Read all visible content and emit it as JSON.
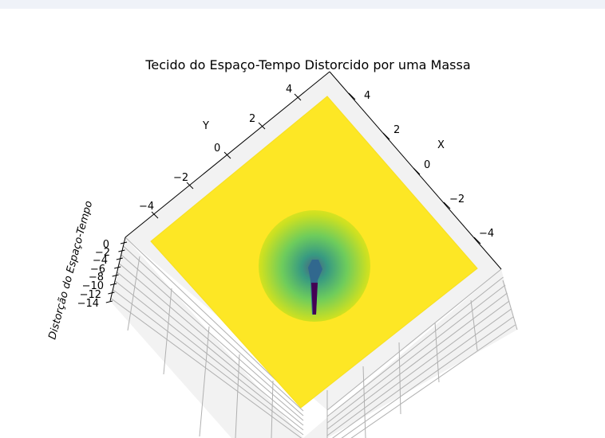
{
  "chart_data": {
    "type": "surface3d",
    "title": "Tecido do Espaço-Tempo Distorcido por uma Massa",
    "xlabel": "X",
    "ylabel": "Y",
    "zlabel": "Distorção do Espaço-Tempo",
    "xlim": [
      -5,
      5
    ],
    "ylim": [
      -5,
      5
    ],
    "zlim": [
      -14,
      0
    ],
    "x_ticks": [
      "4",
      "2",
      "0",
      "−2",
      "−4"
    ],
    "y_ticks": [
      "4",
      "2",
      "0",
      "−2",
      "−4"
    ],
    "z_ticks": [
      "0",
      "−2",
      "−4",
      "−6",
      "−8",
      "−10",
      "−12",
      "−14"
    ],
    "colormap": "viridis",
    "surface": {
      "formula": "z = -1 / sqrt(x^2 + y^2)",
      "min_z": -14,
      "max_z": 0,
      "center": [
        0,
        0
      ]
    },
    "grid": true
  },
  "colors": {
    "surface_flat": "#fde725",
    "deep": "#440154",
    "pane": "#f2f2f2",
    "topbar": "#eff2f8"
  }
}
